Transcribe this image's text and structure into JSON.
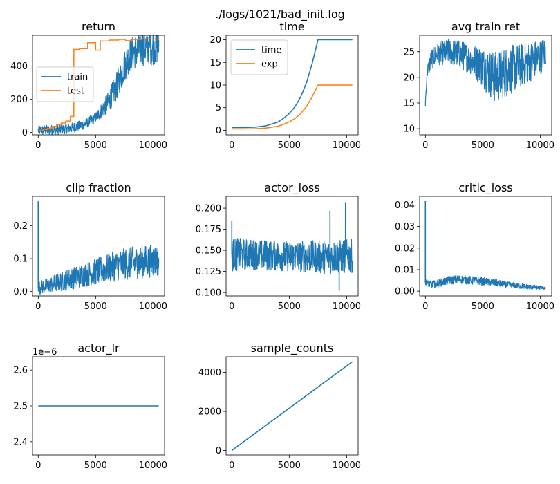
{
  "figure_title": "./logs/1021/bad_init.log",
  "colors": {
    "train": "#1f77b4",
    "test": "#ff7f0e"
  },
  "chart_data": [
    {
      "name": "return",
      "type": "line",
      "title": "return",
      "xlim": [
        -500,
        11000
      ],
      "ylim": [
        -15,
        585
      ],
      "xticks": [
        0,
        5000,
        10000
      ],
      "yticks": [
        0,
        200,
        400
      ],
      "legend": {
        "placement": "center-left",
        "entries": [
          "train",
          "test"
        ]
      },
      "series": [
        {
          "name": "train",
          "color": "#1f77b4",
          "noise_band": true,
          "points": [
            [
              0,
              12
            ],
            [
              1000,
              14
            ],
            [
              2000,
              18
            ],
            [
              3000,
              28
            ],
            [
              4000,
              48
            ],
            [
              5000,
              90
            ],
            [
              6000,
              170
            ],
            [
              7000,
              300
            ],
            [
              7500,
              400
            ],
            [
              8000,
              470
            ],
            [
              9000,
              510
            ],
            [
              10000,
              525
            ],
            [
              10500,
              530
            ]
          ],
          "band": [
            [
              5000,
              30
            ],
            [
              6000,
              60
            ],
            [
              7000,
              90
            ],
            [
              8000,
              100
            ],
            [
              9000,
              110
            ],
            [
              10000,
              120
            ],
            [
              10500,
              120
            ]
          ]
        },
        {
          "name": "test",
          "color": "#ff7f0e",
          "step": true,
          "points": [
            [
              0,
              10
            ],
            [
              400,
              18
            ],
            [
              800,
              24
            ],
            [
              1200,
              36
            ],
            [
              1600,
              46
            ],
            [
              2000,
              56
            ],
            [
              2400,
              68
            ],
            [
              2800,
              96
            ],
            [
              3100,
              500
            ],
            [
              3600,
              505
            ],
            [
              4300,
              540
            ],
            [
              5000,
              495
            ],
            [
              5400,
              550
            ],
            [
              6200,
              556
            ],
            [
              7000,
              560
            ],
            [
              7600,
              552
            ],
            [
              8200,
              560
            ],
            [
              9000,
              563
            ],
            [
              10500,
              567
            ]
          ]
        }
      ]
    },
    {
      "name": "time",
      "type": "line",
      "title": "time",
      "xlim": [
        -500,
        11000
      ],
      "ylim": [
        -1,
        21
      ],
      "xticks": [
        0,
        5000,
        10000
      ],
      "yticks": [
        0,
        5,
        10,
        15,
        20
      ],
      "legend": {
        "placement": "top-left",
        "entries": [
          "time",
          "exp"
        ]
      },
      "series": [
        {
          "name": "time",
          "color": "#1f77b4",
          "points": [
            [
              0,
              0.6
            ],
            [
              1000,
              0.6
            ],
            [
              2000,
              0.7
            ],
            [
              3000,
              1.0
            ],
            [
              4000,
              1.8
            ],
            [
              4500,
              2.6
            ],
            [
              5000,
              3.7
            ],
            [
              5500,
              5.2
            ],
            [
              6000,
              7.4
            ],
            [
              6500,
              10.5
            ],
            [
              7000,
              14.8
            ],
            [
              7500,
              20
            ],
            [
              10500,
              20
            ]
          ]
        },
        {
          "name": "exp",
          "color": "#ff7f0e",
          "points": [
            [
              0,
              0.3
            ],
            [
              1000,
              0.3
            ],
            [
              2000,
              0.35
            ],
            [
              3000,
              0.5
            ],
            [
              4000,
              0.9
            ],
            [
              4500,
              1.3
            ],
            [
              5000,
              1.85
            ],
            [
              5500,
              2.6
            ],
            [
              6000,
              3.7
            ],
            [
              6500,
              5.25
            ],
            [
              7000,
              7.4
            ],
            [
              7500,
              10
            ],
            [
              10500,
              10
            ]
          ]
        }
      ]
    },
    {
      "name": "avg train ret",
      "type": "line",
      "title": "avg train ret",
      "xlim": [
        -500,
        11000
      ],
      "ylim": [
        8.8,
        28.2
      ],
      "xticks": [
        0,
        5000,
        10000
      ],
      "yticks": [
        10,
        15,
        20,
        25
      ],
      "series": [
        {
          "name": "",
          "color": "#1f77b4",
          "noise_band": true,
          "points": [
            [
              0,
              15
            ],
            [
              150,
              21
            ],
            [
              500,
              23.5
            ],
            [
              1000,
              24.5
            ],
            [
              2000,
              25
            ],
            [
              3000,
              24.5
            ],
            [
              4000,
              23.5
            ],
            [
              5000,
              22
            ],
            [
              6000,
              20
            ],
            [
              7000,
              21
            ],
            [
              8000,
              22
            ],
            [
              9000,
              23
            ],
            [
              10000,
              24
            ],
            [
              10500,
              25
            ]
          ],
          "band": [
            [
              0,
              1
            ],
            [
              500,
              2
            ],
            [
              2000,
              2.5
            ],
            [
              4000,
              3
            ],
            [
              5000,
              4
            ],
            [
              6000,
              5
            ],
            [
              7000,
              5
            ],
            [
              8000,
              4.5
            ],
            [
              9000,
              4
            ],
            [
              10000,
              3.5
            ],
            [
              10500,
              3
            ]
          ]
        }
      ]
    },
    {
      "name": "clip fraction",
      "type": "line",
      "title": "clip fraction",
      "xlim": [
        -500,
        11000
      ],
      "ylim": [
        -0.014,
        0.29
      ],
      "xticks": [
        0,
        5000,
        10000
      ],
      "yticks": [
        0.0,
        0.1,
        0.2
      ],
      "series": [
        {
          "name": "",
          "color": "#1f77b4",
          "noise_band": true,
          "spike": [
            0,
            0.275
          ],
          "points": [
            [
              0,
              0.01
            ],
            [
              1000,
              0.02
            ],
            [
              2000,
              0.03
            ],
            [
              3000,
              0.04
            ],
            [
              4000,
              0.05
            ],
            [
              5000,
              0.06
            ],
            [
              6000,
              0.07
            ],
            [
              7000,
              0.08
            ],
            [
              8000,
              0.085
            ],
            [
              9000,
              0.09
            ],
            [
              10500,
              0.095
            ]
          ],
          "band": [
            [
              0,
              0.02
            ],
            [
              2000,
              0.03
            ],
            [
              5000,
              0.04
            ],
            [
              8000,
              0.05
            ],
            [
              10500,
              0.05
            ]
          ]
        }
      ]
    },
    {
      "name": "actor_loss",
      "type": "line",
      "title": "actor_loss",
      "xlim": [
        -500,
        11000
      ],
      "ylim": [
        0.096,
        0.214
      ],
      "xticks": [
        0,
        5000,
        10000
      ],
      "yticks": [
        0.1,
        0.125,
        0.15,
        0.175,
        0.2
      ],
      "series": [
        {
          "name": "",
          "color": "#1f77b4",
          "noise_band": true,
          "spikes": [
            [
              0,
              0.185
            ],
            [
              8550,
              0.197
            ],
            [
              9900,
              0.207
            ],
            [
              9350,
              0.102
            ]
          ],
          "points": [
            [
              0,
              0.145
            ],
            [
              2000,
              0.145
            ],
            [
              5000,
              0.143
            ],
            [
              8000,
              0.142
            ],
            [
              10500,
              0.143
            ]
          ],
          "band": [
            [
              0,
              0.02
            ],
            [
              2000,
              0.018
            ],
            [
              5000,
              0.018
            ],
            [
              8000,
              0.02
            ],
            [
              10500,
              0.02
            ]
          ]
        }
      ]
    },
    {
      "name": "critic_loss",
      "type": "line",
      "title": "critic_loss",
      "xlim": [
        -500,
        11000
      ],
      "ylim": [
        -0.0022,
        0.044
      ],
      "xticks": [
        0,
        5000,
        10000
      ],
      "yticks": [
        0.0,
        0.01,
        0.02,
        0.03,
        0.04
      ],
      "series": [
        {
          "name": "",
          "color": "#1f77b4",
          "noise_band": true,
          "spike": [
            0,
            0.042
          ],
          "points": [
            [
              0,
              0.004
            ],
            [
              500,
              0.003
            ],
            [
              1000,
              0.0035
            ],
            [
              2000,
              0.005
            ],
            [
              3000,
              0.0055
            ],
            [
              4000,
              0.005
            ],
            [
              5000,
              0.0045
            ],
            [
              6000,
              0.004
            ],
            [
              7000,
              0.003
            ],
            [
              8000,
              0.0025
            ],
            [
              9000,
              0.002
            ],
            [
              10500,
              0.0015
            ]
          ],
          "band": [
            [
              0,
              0.0015
            ],
            [
              2000,
              0.002
            ],
            [
              4000,
              0.002
            ],
            [
              7000,
              0.0015
            ],
            [
              10500,
              0.0008
            ]
          ]
        }
      ]
    },
    {
      "name": "actor_lr",
      "type": "line",
      "title": "actor_lr",
      "offset_text": "1e−6",
      "xlim": [
        -500,
        11000
      ],
      "ylim": [
        2.363,
        2.637
      ],
      "xticks": [
        0,
        5000,
        10000
      ],
      "yticks": [
        2.4,
        2.5,
        2.6
      ],
      "series": [
        {
          "name": "",
          "color": "#1f77b4",
          "points": [
            [
              0,
              2.5
            ],
            [
              10500,
              2.5
            ]
          ]
        }
      ]
    },
    {
      "name": "sample_counts",
      "type": "line",
      "title": "sample_counts",
      "xlim": [
        -500,
        11000
      ],
      "ylim": [
        -230,
        4800
      ],
      "xticks": [
        0,
        5000,
        10000
      ],
      "yticks": [
        0,
        2000,
        4000
      ],
      "series": [
        {
          "name": "",
          "color": "#1f77b4",
          "points": [
            [
              0,
              0
            ],
            [
              10500,
              4550
            ]
          ]
        }
      ]
    }
  ]
}
